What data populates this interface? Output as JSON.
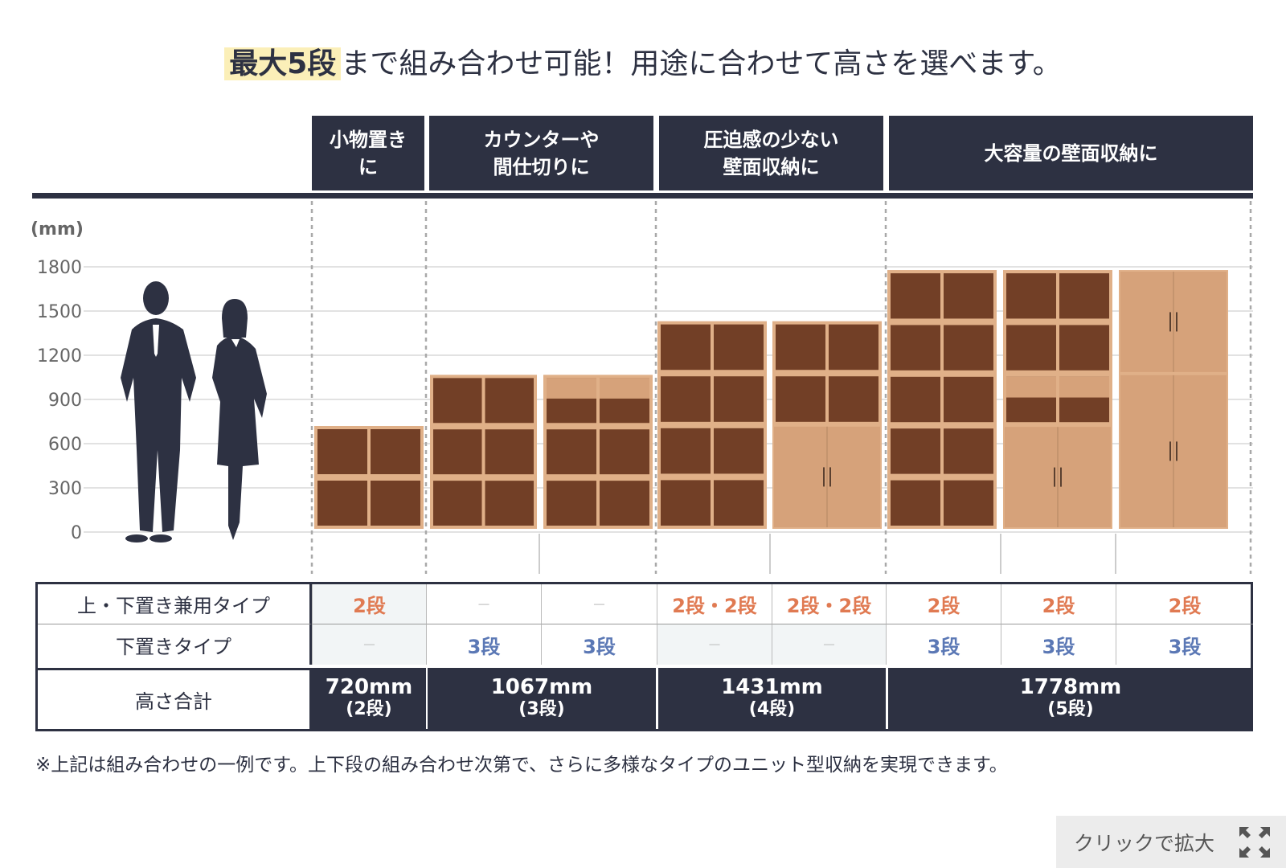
{
  "title": {
    "highlight": "最大5段",
    "rest": "まで組み合わせ可能！用途に合わせて高さを選べます。"
  },
  "headers": [
    "小物置き\nに",
    "カウンターや\n間仕切りに",
    "圧迫感の少ない\n壁面収納に",
    "大容量の壁面収納に"
  ],
  "chart_data": {
    "type": "bar",
    "ylabel": "(mm)",
    "yticks": [
      "0",
      "300",
      "600",
      "900",
      "1200",
      "1500",
      "1800"
    ],
    "ylim": [
      0,
      1800
    ],
    "grid": true,
    "categories": [
      "2段",
      "3段",
      "3段",
      "4段",
      "4段",
      "5段",
      "5段",
      "5段"
    ],
    "values": [
      720,
      1067,
      1067,
      1431,
      1431,
      1778,
      1778,
      1778
    ],
    "colors": {
      "dark_wood": "#723f26",
      "light_wood": "#d6a27a",
      "frame": "#e0b088",
      "silhouette": "#2d3142",
      "grid": "#d8d8d8"
    }
  },
  "table": {
    "row_labels": [
      "上・下置き兼用タイプ",
      "下置きタイプ",
      "高さ合計"
    ],
    "upper": [
      "2段",
      "－",
      "－",
      "2段・2段",
      "2段・2段",
      "2段",
      "2段",
      "2段"
    ],
    "lower": [
      "－",
      "3段",
      "3段",
      "－",
      "－",
      "3段",
      "3段",
      "3段"
    ],
    "totals": [
      {
        "mm": "720mm",
        "dan": "(2段)"
      },
      {
        "mm": "1067mm",
        "dan": "(3段)"
      },
      {
        "mm": "1431mm",
        "dan": "(4段)"
      },
      {
        "mm": "1778mm",
        "dan": "(5段)"
      }
    ]
  },
  "note": "※上記は組み合わせの一例です。上下段の組み合わせ次第で、さらに多様なタイプのユニット型収納を実現できます。",
  "zoom": {
    "label": "クリックで拡大",
    "icon": "expand-icon"
  }
}
